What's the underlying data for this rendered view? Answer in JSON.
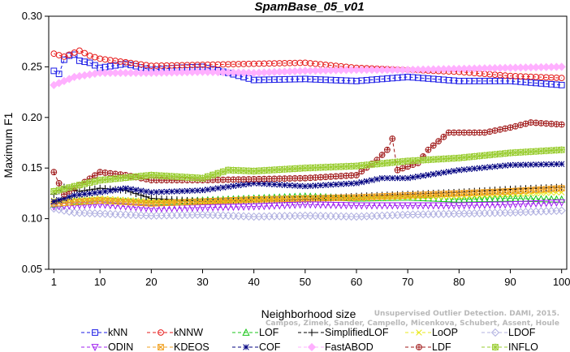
{
  "chart_data": {
    "type": "line",
    "title": "SpamBase_05_v01",
    "xlabel": "Neighborhood size",
    "ylabel": "Maximum F1",
    "xlim": [
      0,
      101
    ],
    "ylim": [
      0.05,
      0.3
    ],
    "xticks": [
      1,
      10,
      20,
      30,
      40,
      50,
      60,
      70,
      80,
      90,
      100
    ],
    "yticks": [
      0.05,
      0.1,
      0.15,
      0.2,
      0.25,
      0.3
    ],
    "ytick_labels": [
      "0.05",
      "0.10",
      "0.15",
      "0.20",
      "0.25",
      "0.30"
    ],
    "grid": false,
    "legend_position": "bottom",
    "credit": "Campos, Zimek, Sander, Campello, Micenkova, Schubert, Assent, Houle",
    "credit_partial": "Unsupervised Outlier Detection. DAMI, 2015.",
    "series": [
      {
        "name": "kNN",
        "color": "#1a1ae6",
        "marker": "square",
        "knots": [
          [
            1,
            0.246
          ],
          [
            2,
            0.243
          ],
          [
            3,
            0.257
          ],
          [
            4,
            0.261
          ],
          [
            5,
            0.262
          ],
          [
            6,
            0.256
          ],
          [
            8,
            0.254
          ],
          [
            10,
            0.249
          ],
          [
            15,
            0.253
          ],
          [
            20,
            0.247
          ],
          [
            25,
            0.249
          ],
          [
            30,
            0.25
          ],
          [
            35,
            0.244
          ],
          [
            40,
            0.237
          ],
          [
            50,
            0.238
          ],
          [
            60,
            0.236
          ],
          [
            70,
            0.24
          ],
          [
            80,
            0.236
          ],
          [
            90,
            0.236
          ],
          [
            100,
            0.232
          ]
        ]
      },
      {
        "name": "kNNW",
        "color": "#e61a1a",
        "marker": "circle",
        "knots": [
          [
            1,
            0.263
          ],
          [
            3,
            0.26
          ],
          [
            6,
            0.266
          ],
          [
            8,
            0.261
          ],
          [
            10,
            0.258
          ],
          [
            20,
            0.251
          ],
          [
            30,
            0.252
          ],
          [
            40,
            0.253
          ],
          [
            50,
            0.254
          ],
          [
            60,
            0.249
          ],
          [
            70,
            0.247
          ],
          [
            80,
            0.245
          ],
          [
            90,
            0.241
          ],
          [
            100,
            0.239
          ]
        ]
      },
      {
        "name": "LOF",
        "color": "#19c519",
        "marker": "triangle-up",
        "knots": [
          [
            1,
            0.114
          ],
          [
            5,
            0.117
          ],
          [
            10,
            0.118
          ],
          [
            20,
            0.116
          ],
          [
            30,
            0.118
          ],
          [
            40,
            0.12
          ],
          [
            50,
            0.122
          ],
          [
            60,
            0.12
          ],
          [
            70,
            0.121
          ],
          [
            80,
            0.119
          ],
          [
            90,
            0.12
          ],
          [
            100,
            0.119
          ]
        ]
      },
      {
        "name": "SimplifiedLOF",
        "color": "#000000",
        "marker": "plus",
        "knots": [
          [
            1,
            0.124
          ],
          [
            3,
            0.131
          ],
          [
            6,
            0.127
          ],
          [
            10,
            0.13
          ],
          [
            15,
            0.128
          ],
          [
            20,
            0.12
          ],
          [
            30,
            0.117
          ],
          [
            40,
            0.118
          ],
          [
            50,
            0.119
          ],
          [
            60,
            0.122
          ],
          [
            70,
            0.124
          ],
          [
            80,
            0.126
          ],
          [
            90,
            0.129
          ],
          [
            100,
            0.131
          ]
        ]
      },
      {
        "name": "LoOP",
        "color": "#e8e81a",
        "marker": "x",
        "knots": [
          [
            1,
            0.118
          ],
          [
            10,
            0.12
          ],
          [
            20,
            0.117
          ],
          [
            30,
            0.116
          ],
          [
            40,
            0.118
          ],
          [
            50,
            0.12
          ],
          [
            60,
            0.12
          ],
          [
            70,
            0.121
          ],
          [
            80,
            0.122
          ],
          [
            90,
            0.124
          ],
          [
            100,
            0.126
          ]
        ]
      },
      {
        "name": "LDOF",
        "color": "#b0b0e0",
        "marker": "diamond",
        "knots": [
          [
            1,
            0.11
          ],
          [
            5,
            0.106
          ],
          [
            10,
            0.105
          ],
          [
            20,
            0.103
          ],
          [
            30,
            0.104
          ],
          [
            40,
            0.102
          ],
          [
            50,
            0.103
          ],
          [
            60,
            0.102
          ],
          [
            70,
            0.104
          ],
          [
            80,
            0.105
          ],
          [
            90,
            0.106
          ],
          [
            100,
            0.108
          ]
        ]
      },
      {
        "name": "ODIN",
        "color": "#a020f0",
        "marker": "triangle-down",
        "knots": [
          [
            1,
            0.112
          ],
          [
            5,
            0.113
          ],
          [
            10,
            0.114
          ],
          [
            20,
            0.11
          ],
          [
            30,
            0.111
          ],
          [
            40,
            0.112
          ],
          [
            50,
            0.114
          ],
          [
            60,
            0.113
          ],
          [
            70,
            0.113
          ],
          [
            80,
            0.113
          ],
          [
            90,
            0.114
          ],
          [
            100,
            0.116
          ]
        ]
      },
      {
        "name": "KDEOS",
        "color": "#f0a020",
        "marker": "asterisk-square",
        "knots": [
          [
            1,
            0.115
          ],
          [
            10,
            0.118
          ],
          [
            20,
            0.115
          ],
          [
            30,
            0.117
          ],
          [
            40,
            0.119
          ],
          [
            50,
            0.12
          ],
          [
            60,
            0.121
          ],
          [
            70,
            0.123
          ],
          [
            80,
            0.125
          ],
          [
            90,
            0.127
          ],
          [
            100,
            0.13
          ]
        ]
      },
      {
        "name": "COF",
        "color": "#000080",
        "marker": "asterisk",
        "knots": [
          [
            1,
            0.117
          ],
          [
            5,
            0.123
          ],
          [
            10,
            0.126
          ],
          [
            15,
            0.13
          ],
          [
            20,
            0.126
          ],
          [
            30,
            0.128
          ],
          [
            40,
            0.135
          ],
          [
            50,
            0.132
          ],
          [
            60,
            0.135
          ],
          [
            65,
            0.14
          ],
          [
            70,
            0.14
          ],
          [
            80,
            0.148
          ],
          [
            90,
            0.153
          ],
          [
            100,
            0.154
          ]
        ]
      },
      {
        "name": "FastABOD",
        "color": "#ffb0ff",
        "marker": "diamond-filled",
        "knots": [
          [
            1,
            0.232
          ],
          [
            5,
            0.24
          ],
          [
            10,
            0.244
          ],
          [
            20,
            0.244
          ],
          [
            30,
            0.245
          ],
          [
            40,
            0.244
          ],
          [
            50,
            0.246
          ],
          [
            60,
            0.247
          ],
          [
            70,
            0.247
          ],
          [
            80,
            0.248
          ],
          [
            90,
            0.249
          ],
          [
            100,
            0.25
          ]
        ]
      },
      {
        "name": "LDF",
        "color": "#a01a1a",
        "marker": "circle-plus",
        "knots": [
          [
            1,
            0.146
          ],
          [
            3,
            0.124
          ],
          [
            6,
            0.133
          ],
          [
            10,
            0.146
          ],
          [
            15,
            0.143
          ],
          [
            20,
            0.138
          ],
          [
            30,
            0.138
          ],
          [
            40,
            0.139
          ],
          [
            50,
            0.14
          ],
          [
            60,
            0.143
          ],
          [
            64,
            0.158
          ],
          [
            66,
            0.168
          ],
          [
            67,
            0.179
          ],
          [
            68,
            0.148
          ],
          [
            72,
            0.155
          ],
          [
            74,
            0.168
          ],
          [
            78,
            0.185
          ],
          [
            85,
            0.185
          ],
          [
            90,
            0.19
          ],
          [
            94,
            0.195
          ],
          [
            100,
            0.193
          ]
        ]
      },
      {
        "name": "INFLO",
        "color": "#9acd32",
        "marker": "star",
        "knots": [
          [
            1,
            0.127
          ],
          [
            5,
            0.132
          ],
          [
            10,
            0.138
          ],
          [
            20,
            0.143
          ],
          [
            30,
            0.14
          ],
          [
            35,
            0.148
          ],
          [
            40,
            0.147
          ],
          [
            50,
            0.15
          ],
          [
            60,
            0.152
          ],
          [
            70,
            0.157
          ],
          [
            80,
            0.16
          ],
          [
            90,
            0.165
          ],
          [
            100,
            0.168
          ]
        ]
      }
    ]
  }
}
